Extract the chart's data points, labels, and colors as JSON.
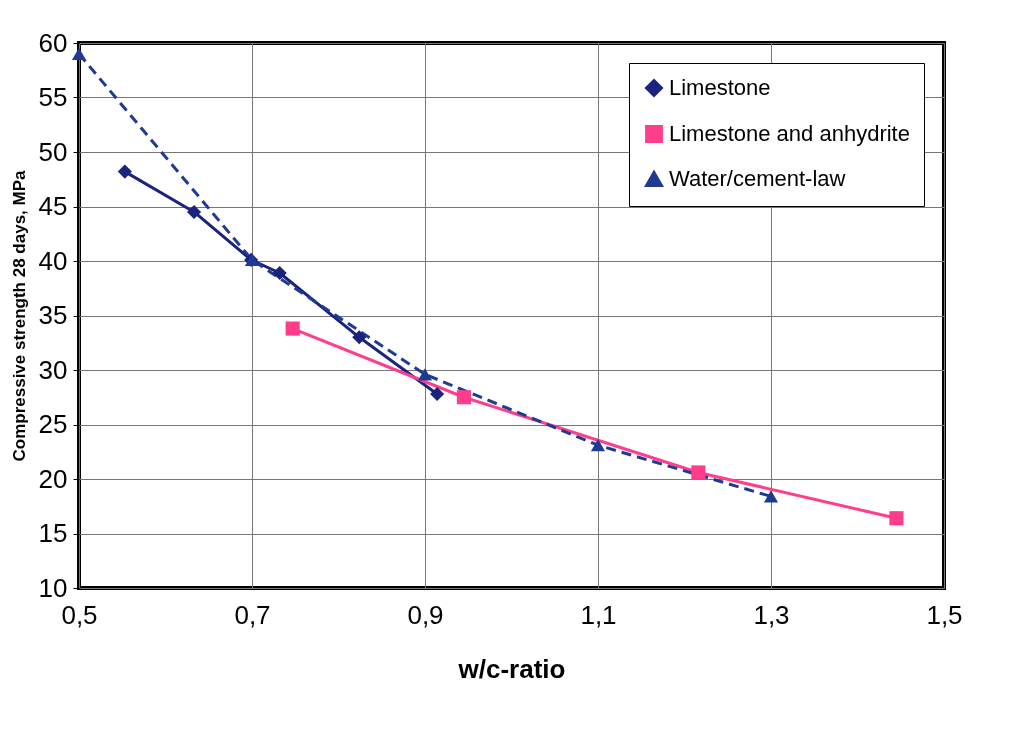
{
  "chart_data": {
    "type": "line",
    "xlabel": "w/c-ratio",
    "ylabel": "Compressive strength 28 days, MPa",
    "xlim": [
      0.5,
      1.5
    ],
    "xticks": [
      {
        "value": 0.5,
        "label": "0,5"
      },
      {
        "value": 0.7,
        "label": "0,7"
      },
      {
        "value": 0.9,
        "label": "0,9"
      },
      {
        "value": 1.1,
        "label": "1,1"
      },
      {
        "value": 1.3,
        "label": "1,3"
      },
      {
        "value": 1.5,
        "label": "1,5"
      }
    ],
    "ylim": [
      10,
      60
    ],
    "yticks": [
      10,
      15,
      20,
      25,
      30,
      35,
      40,
      45,
      50,
      55,
      60
    ],
    "grid": true,
    "legend": "top right",
    "series": [
      {
        "name": "Limestone",
        "color": "#1a237e",
        "marker": "diamond",
        "line_style": "solid",
        "x": [
          0.553,
          0.633,
          0.699,
          0.732,
          0.824,
          0.914
        ],
        "values": [
          48.2,
          44.5,
          40.1,
          38.9,
          33.0,
          27.8
        ]
      },
      {
        "name": "Limestone and anhydrite",
        "color": "#ff3d8a",
        "marker": "square",
        "line_style": "solid",
        "x": [
          0.747,
          0.945,
          1.216,
          1.445
        ],
        "values": [
          33.8,
          27.5,
          20.6,
          16.4
        ]
      },
      {
        "name": "Water/cement-law",
        "color": "#1f3a93",
        "marker": "triangle",
        "line_style": "dashed",
        "x": [
          0.5,
          0.7,
          0.9,
          1.1,
          1.3
        ],
        "values": [
          59.0,
          40.1,
          29.6,
          23.1,
          18.4
        ]
      }
    ]
  }
}
